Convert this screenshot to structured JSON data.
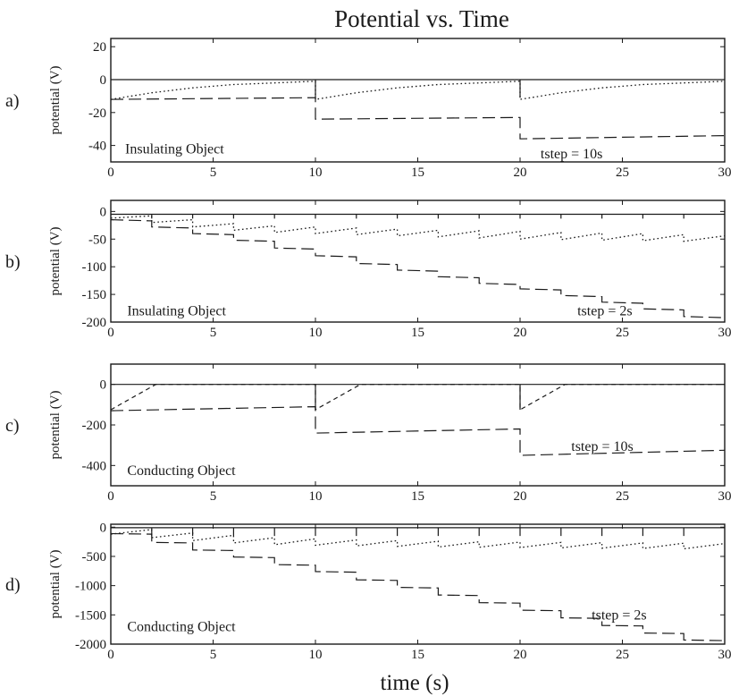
{
  "figure": {
    "title": "Potential vs. Time",
    "xlabel": "time (s)"
  },
  "chart_data": [
    {
      "type": "line",
      "panel_label": "a)",
      "title": "",
      "xlabel": "",
      "ylabel": "potential (V)",
      "xlim": [
        0,
        30
      ],
      "ylim": [
        -50,
        25
      ],
      "xticks": [
        0,
        5,
        10,
        15,
        20,
        25,
        30
      ],
      "yticks": [
        -40,
        -20,
        0,
        20
      ],
      "grid": false,
      "annotations": [
        {
          "text": "Insulating Object",
          "x": 0.7,
          "y": -42
        },
        {
          "text": "tstep = 10s",
          "x": 21,
          "y": -45
        }
      ],
      "series": [
        {
          "style": "solid",
          "x": [
            0,
            10,
            10,
            10,
            20,
            20,
            20,
            30
          ],
          "y": [
            0,
            0,
            -11,
            0,
            0,
            -11,
            0,
            0
          ]
        },
        {
          "style": "dotted",
          "x": [
            0,
            2,
            4,
            6,
            8,
            10,
            10,
            12,
            14,
            16,
            18,
            20,
            20,
            22,
            24,
            26,
            28,
            30
          ],
          "y": [
            -12,
            -8,
            -5,
            -3,
            -2,
            -1,
            -12,
            -8,
            -5,
            -3,
            -2,
            -1,
            -12,
            -8,
            -5,
            -3,
            -2,
            -1
          ]
        },
        {
          "style": "dashed",
          "x": [
            0,
            10,
            10,
            20,
            20,
            30
          ],
          "y": [
            -12,
            -11,
            -24,
            -23,
            -36,
            -34
          ]
        }
      ]
    },
    {
      "type": "line",
      "panel_label": "b)",
      "title": "",
      "xlabel": "",
      "ylabel": "potential (V)",
      "xlim": [
        0,
        30
      ],
      "ylim": [
        -200,
        20
      ],
      "xticks": [
        0,
        5,
        10,
        15,
        20,
        25,
        30
      ],
      "yticks": [
        -200,
        -150,
        -100,
        -50,
        0
      ],
      "grid": false,
      "annotations": [
        {
          "text": "Insulating Object",
          "x": 0.8,
          "y": -180
        },
        {
          "text": "tstep = 2s",
          "x": 22.8,
          "y": -180
        }
      ],
      "series": [
        {
          "style": "solid",
          "x": [
            0,
            2,
            2,
            2,
            4,
            4,
            4,
            6,
            6,
            6,
            8,
            8,
            8,
            10,
            10,
            10,
            12,
            12,
            12,
            14,
            14,
            14,
            16,
            16,
            16,
            18,
            18,
            18,
            20,
            20,
            20,
            22,
            22,
            22,
            24,
            24,
            24,
            26,
            26,
            26,
            28,
            28,
            28,
            30
          ],
          "y": [
            -5,
            -5,
            -13,
            -5,
            -5,
            -13,
            -5,
            -5,
            -13,
            -5,
            -5,
            -13,
            -5,
            -5,
            -13,
            -5,
            -5,
            -13,
            -5,
            -5,
            -13,
            -5,
            -5,
            -13,
            -5,
            -5,
            -13,
            -5,
            -5,
            -13,
            -5,
            -5,
            -13,
            -5,
            -5,
            -13,
            -5,
            -5,
            -13,
            -5,
            -5,
            -13,
            -5,
            -5
          ]
        },
        {
          "style": "dotted",
          "x": [
            0,
            2,
            2,
            4,
            4,
            6,
            6,
            8,
            8,
            10,
            10,
            12,
            12,
            14,
            14,
            16,
            16,
            18,
            18,
            20,
            20,
            22,
            22,
            24,
            24,
            26,
            26,
            28,
            28,
            30
          ],
          "y": [
            -12,
            -8,
            -20,
            -15,
            -28,
            -22,
            -34,
            -26,
            -38,
            -28,
            -40,
            -30,
            -42,
            -32,
            -44,
            -34,
            -46,
            -35,
            -48,
            -36,
            -50,
            -38,
            -51,
            -39,
            -52,
            -40,
            -53,
            -42,
            -54,
            -44
          ]
        },
        {
          "style": "dashed",
          "x": [
            0,
            2,
            2,
            4,
            4,
            6,
            6,
            8,
            8,
            10,
            10,
            12,
            12,
            14,
            14,
            16,
            16,
            18,
            18,
            20,
            20,
            22,
            22,
            24,
            24,
            26,
            26,
            28,
            28,
            30
          ],
          "y": [
            -15,
            -17,
            -28,
            -30,
            -40,
            -42,
            -52,
            -54,
            -66,
            -68,
            -80,
            -82,
            -94,
            -96,
            -106,
            -108,
            -118,
            -120,
            -130,
            -132,
            -140,
            -142,
            -152,
            -154,
            -164,
            -166,
            -176,
            -178,
            -190,
            -192
          ]
        }
      ]
    },
    {
      "type": "line",
      "panel_label": "c)",
      "title": "",
      "xlabel": "",
      "ylabel": "potential (V)",
      "xlim": [
        0,
        30
      ],
      "ylim": [
        -500,
        100
      ],
      "xticks": [
        0,
        5,
        10,
        15,
        20,
        25,
        30
      ],
      "yticks": [
        -400,
        -200,
        0
      ],
      "grid": false,
      "annotations": [
        {
          "text": "Conducting Object",
          "x": 0.8,
          "y": -425
        },
        {
          "text": "tstep = 10s",
          "x": 22.5,
          "y": -305
        }
      ],
      "series": [
        {
          "style": "solid",
          "x": [
            0,
            10,
            10,
            10,
            20,
            20,
            20,
            30
          ],
          "y": [
            0,
            0,
            -125,
            0,
            0,
            -125,
            0,
            0
          ]
        },
        {
          "style": "dashed-short",
          "x": [
            0,
            2.2,
            2.2,
            10,
            10,
            12.2,
            12.2,
            20,
            20,
            22.2,
            22.2,
            30
          ],
          "y": [
            -125,
            0,
            0,
            0,
            -125,
            0,
            0,
            0,
            -125,
            0,
            0,
            0
          ]
        },
        {
          "style": "dashed",
          "x": [
            0,
            10,
            10,
            20,
            20,
            30
          ],
          "y": [
            -130,
            -110,
            -240,
            -220,
            -350,
            -325
          ]
        }
      ]
    },
    {
      "type": "line",
      "panel_label": "d)",
      "title": "",
      "xlabel": "",
      "ylabel": "potential (V)",
      "xlim": [
        0,
        30
      ],
      "ylim": [
        -2000,
        50
      ],
      "xticks": [
        0,
        5,
        10,
        15,
        20,
        25,
        30
      ],
      "yticks": [
        -2000,
        -1500,
        -1000,
        -500,
        0
      ],
      "yticklabels": [
        "-2000",
        "-1500",
        "-1000",
        "-500",
        "0"
      ],
      "grid": false,
      "annotations": [
        {
          "text": "Conducting Object",
          "x": 0.8,
          "y": -1700
        },
        {
          "text": "tstep = 2s",
          "x": 23.5,
          "y": -1500
        }
      ],
      "series": [
        {
          "style": "solid",
          "x": [
            0,
            2,
            2,
            2,
            4,
            4,
            4,
            6,
            6,
            6,
            8,
            8,
            8,
            10,
            10,
            10,
            12,
            12,
            12,
            14,
            14,
            14,
            16,
            16,
            16,
            18,
            18,
            18,
            20,
            20,
            20,
            22,
            22,
            22,
            24,
            24,
            24,
            26,
            26,
            26,
            28,
            28,
            28,
            30
          ],
          "y": [
            -10,
            -10,
            -150,
            -10,
            -10,
            -150,
            -10,
            -10,
            -150,
            -10,
            -10,
            -150,
            -10,
            -10,
            -150,
            -10,
            -10,
            -150,
            -10,
            -10,
            -150,
            -10,
            -10,
            -150,
            -10,
            -10,
            -150,
            -10,
            -10,
            -150,
            -10,
            -10,
            -150,
            -10,
            -10,
            -150,
            -10,
            -10,
            -150,
            -10,
            -10,
            -150,
            -10,
            -10
          ]
        },
        {
          "style": "dotted",
          "x": [
            0,
            2,
            2,
            4,
            4,
            6,
            6,
            8,
            8,
            10,
            10,
            12,
            12,
            14,
            14,
            16,
            16,
            18,
            18,
            20,
            20,
            22,
            22,
            24,
            24,
            26,
            26,
            28,
            28,
            30
          ],
          "y": [
            -120,
            -40,
            -180,
            -100,
            -230,
            -140,
            -270,
            -180,
            -300,
            -200,
            -310,
            -220,
            -320,
            -230,
            -330,
            -240,
            -340,
            -250,
            -345,
            -255,
            -350,
            -260,
            -355,
            -265,
            -360,
            -270,
            -365,
            -275,
            -370,
            -280
          ]
        },
        {
          "style": "dashed",
          "x": [
            0,
            2,
            2,
            4,
            4,
            6,
            6,
            8,
            8,
            10,
            10,
            12,
            12,
            14,
            14,
            16,
            16,
            18,
            18,
            20,
            20,
            22,
            22,
            24,
            24,
            26,
            26,
            28,
            28,
            30
          ],
          "y": [
            -110,
            -120,
            -260,
            -270,
            -390,
            -400,
            -510,
            -520,
            -640,
            -650,
            -760,
            -770,
            -900,
            -910,
            -1030,
            -1040,
            -1160,
            -1170,
            -1290,
            -1300,
            -1420,
            -1430,
            -1550,
            -1560,
            -1680,
            -1690,
            -1810,
            -1820,
            -1930,
            -1940
          ]
        }
      ]
    }
  ]
}
